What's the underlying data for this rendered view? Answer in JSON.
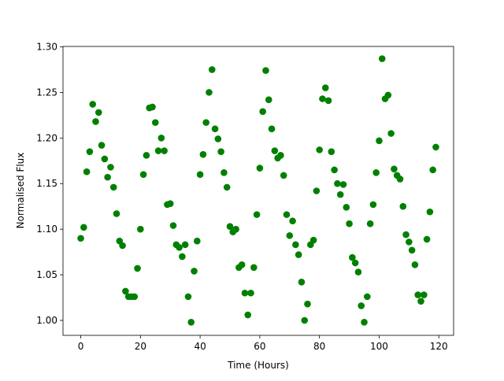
{
  "chart_data": {
    "type": "scatter",
    "xlabel": "Time (Hours)",
    "ylabel": "Normalised Flux",
    "x": [
      0,
      1,
      2,
      3,
      4,
      5,
      6,
      7,
      8,
      9,
      10,
      11,
      12,
      13,
      14,
      15,
      16,
      17,
      18,
      19,
      20,
      21,
      22,
      23,
      24,
      25,
      26,
      27,
      28,
      29,
      30,
      31,
      32,
      33,
      34,
      35,
      36,
      37,
      38,
      39,
      40,
      41,
      42,
      43,
      44,
      45,
      46,
      47,
      48,
      49,
      50,
      51,
      52,
      53,
      54,
      55,
      56,
      57,
      58,
      59,
      60,
      61,
      62,
      63,
      64,
      65,
      66,
      67,
      68,
      69,
      70,
      71,
      72,
      73,
      74,
      75,
      76,
      77,
      78,
      79,
      80,
      81,
      82,
      83,
      84,
      85,
      86,
      87,
      88,
      89,
      90,
      91,
      92,
      93,
      94,
      95,
      96,
      97,
      98,
      99,
      100,
      101,
      102,
      103,
      104,
      105,
      106,
      107,
      108,
      109,
      110,
      111,
      112,
      113,
      114,
      115,
      116,
      117,
      118,
      119
    ],
    "values": [
      1.09,
      1.102,
      1.163,
      1.185,
      1.237,
      1.218,
      1.228,
      1.192,
      1.177,
      1.157,
      1.168,
      1.146,
      1.117,
      1.087,
      1.082,
      1.032,
      1.026,
      1.026,
      1.026,
      1.057,
      1.1,
      1.16,
      1.181,
      1.233,
      1.234,
      1.217,
      1.186,
      1.2,
      1.186,
      1.127,
      1.128,
      1.104,
      1.083,
      1.08,
      1.07,
      1.083,
      1.026,
      0.998,
      1.054,
      1.087,
      1.16,
      1.182,
      1.217,
      1.25,
      1.275,
      1.21,
      1.199,
      1.185,
      1.162,
      1.146,
      1.103,
      1.097,
      1.1,
      1.058,
      1.061,
      1.03,
      1.006,
      1.03,
      1.058,
      1.116,
      1.167,
      1.229,
      1.274,
      1.242,
      1.21,
      1.186,
      1.178,
      1.181,
      1.159,
      1.116,
      1.093,
      1.109,
      1.083,
      1.072,
      1.042,
      1.0,
      1.018,
      1.083,
      1.088,
      1.142,
      1.187,
      1.243,
      1.255,
      1.241,
      1.185,
      1.165,
      1.15,
      1.138,
      1.149,
      1.124,
      1.106,
      1.069,
      1.063,
      1.053,
      1.016,
      0.998,
      1.026,
      1.106,
      1.127,
      1.162,
      1.197,
      1.287,
      1.243,
      1.247,
      1.205,
      1.166,
      1.159,
      1.155,
      1.125,
      1.094,
      1.086,
      1.077,
      1.061,
      1.028,
      1.021,
      1.028,
      1.089,
      1.119,
      1.165,
      1.19
    ],
    "color": "#008000",
    "xlim": [
      -5.95,
      124.95
    ],
    "xticks": [
      0,
      20,
      40,
      60,
      80,
      100,
      120
    ],
    "ylim": [
      0.9836,
      1.3004
    ],
    "yticks": [
      {
        "value": 1.0,
        "label": "1.00"
      },
      {
        "value": 1.05,
        "label": "1.05"
      },
      {
        "value": 1.1,
        "label": "1.10"
      },
      {
        "value": 1.15,
        "label": "1.15"
      },
      {
        "value": 1.2,
        "label": "1.20"
      },
      {
        "value": 1.25,
        "label": "1.25"
      },
      {
        "value": 1.3,
        "label": "1.30"
      }
    ]
  }
}
